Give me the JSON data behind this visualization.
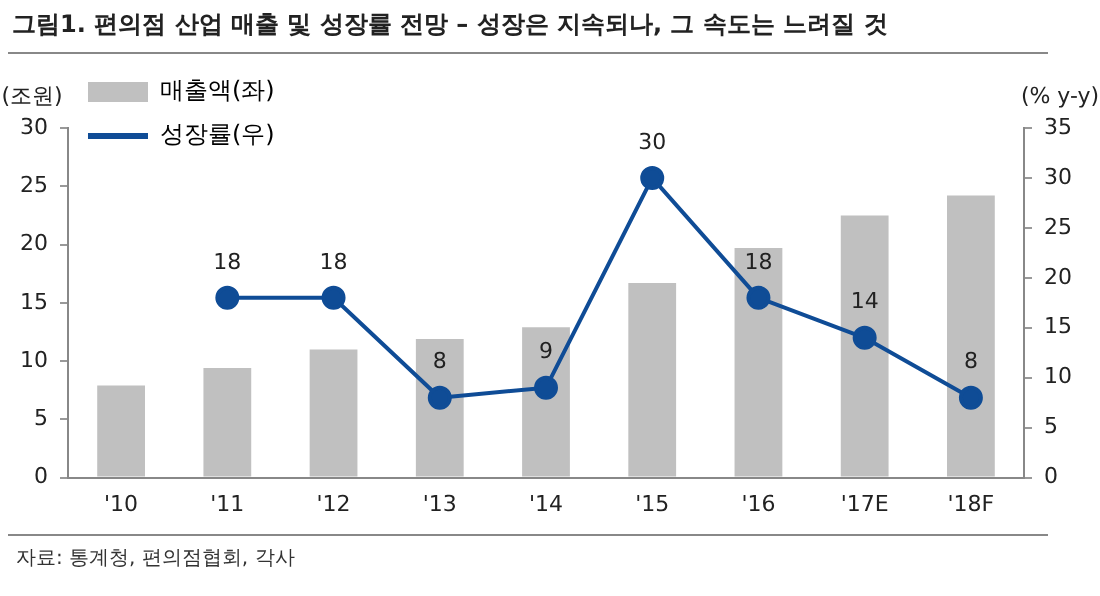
{
  "chart_data": {
    "type": "bar",
    "title": "그림1. 편의점 산업 매출 및 성장률 전망 – 성장은 지속되나, 그 속도는 느려질 것",
    "ylabel": "(조원)",
    "y2label": "(% y-y)",
    "annotations": [
      "자료: 통계청, 편의점협회, 각사"
    ],
    "categories": [
      "'10",
      "'11",
      "'12",
      "'13",
      "'14",
      "'15",
      "'16",
      "'17E",
      "'18F"
    ],
    "series": [
      {
        "name": "매출액(좌)",
        "color": "#c0c0c0",
        "values": [
          7.9,
          9.4,
          11.0,
          11.9,
          12.9,
          16.7,
          19.7,
          22.5,
          24.2
        ]
      },
      {
        "name": "성장률(우)",
        "type": "line",
        "axis": "y2",
        "color": "#0f4c96",
        "values": [
          null,
          18,
          18,
          8,
          9,
          30,
          18,
          14,
          8
        ],
        "data_labels": true
      }
    ],
    "ylim": [
      0,
      30
    ],
    "yticks": [
      0,
      5,
      10,
      15,
      20,
      25,
      30
    ],
    "y2lim": [
      0,
      35
    ],
    "y2ticks": [
      0,
      5,
      10,
      15,
      20,
      25,
      30,
      35
    ],
    "grid": false,
    "legend": "top left",
    "marker": "circle"
  }
}
